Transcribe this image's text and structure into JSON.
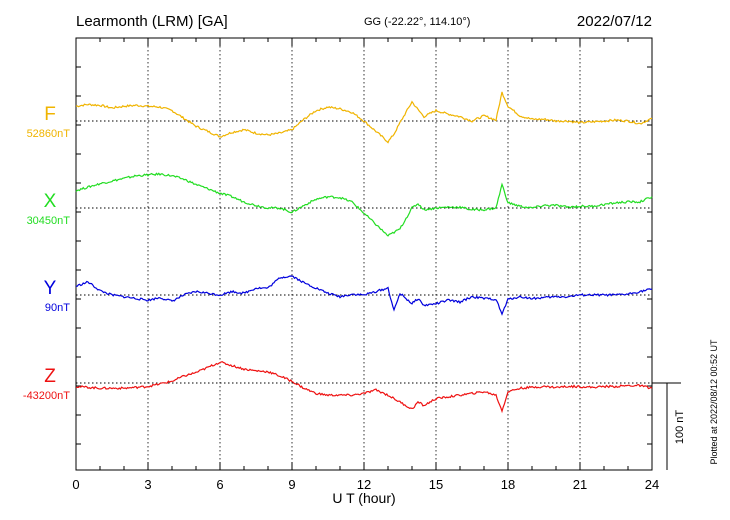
{
  "chart_data": {
    "type": "line",
    "title": "Learmonth (LRM)  [GA]",
    "subtitle": "GG (-22.22°, 114.10°)",
    "date": "2022/07/12",
    "xlabel": "U T (hour)",
    "xlim": [
      0,
      24
    ],
    "xticks": [
      "0",
      "3",
      "6",
      "9",
      "12",
      "15",
      "18",
      "21",
      "24"
    ],
    "scale_bar_label": "100 nT",
    "side_note": "Plotted at 2022/08/12 00:52 UT",
    "grid": true,
    "series": [
      {
        "name": "F",
        "baseline_label": "52860nT",
        "color": "#f0b400",
        "baseline_offset": 0,
        "x": [
          0,
          0.5,
          1,
          1.5,
          2,
          2.5,
          3,
          3.5,
          4,
          4.5,
          5,
          5.5,
          6,
          6.5,
          7,
          7.5,
          8,
          8.5,
          9,
          9.5,
          10,
          10.5,
          11,
          11.5,
          12,
          12.5,
          13,
          13.25,
          13.5,
          14,
          14.25,
          14.5,
          15,
          15.5,
          16,
          16.5,
          17,
          17.5,
          17.75,
          18,
          18.5,
          19,
          19.5,
          20,
          20.5,
          21,
          21.5,
          22,
          22.5,
          23,
          23.5,
          24
        ],
        "values": [
          17,
          19,
          18,
          15,
          17,
          18,
          17,
          16,
          12,
          3,
          -6,
          -12,
          -18,
          -13,
          -10,
          -14,
          -16,
          -14,
          -10,
          2,
          12,
          16,
          14,
          10,
          0,
          -12,
          -24,
          -15,
          -2,
          22,
          13,
          5,
          12,
          8,
          5,
          0,
          6,
          1,
          33,
          17,
          6,
          2,
          2,
          0,
          0,
          -2,
          -1,
          0,
          1,
          0,
          -3,
          3
        ]
      },
      {
        "name": "X",
        "baseline_label": "30450nT",
        "color": "#22dd22",
        "baseline_offset": 0,
        "x": [
          0,
          0.5,
          1,
          1.5,
          2,
          2.5,
          3,
          3.5,
          4,
          4.5,
          5,
          5.5,
          6,
          6.5,
          7,
          7.5,
          8,
          8.5,
          9,
          9.5,
          10,
          10.5,
          11,
          11.5,
          12,
          12.5,
          13,
          13.5,
          14,
          14.25,
          14.5,
          15,
          15.5,
          16,
          16.5,
          17,
          17.5,
          17.75,
          18,
          18.5,
          19,
          19.5,
          20,
          20.5,
          21,
          21.5,
          22,
          22.5,
          23,
          23.5,
          24
        ],
        "values": [
          20,
          24,
          28,
          31,
          34,
          37,
          38,
          39,
          37,
          33,
          27,
          22,
          17,
          13,
          7,
          3,
          0,
          0,
          -5,
          3,
          10,
          13,
          12,
          7,
          -6,
          -19,
          -32,
          -24,
          0,
          5,
          -2,
          0,
          1,
          1,
          -2,
          -2,
          0,
          27,
          6,
          2,
          0,
          3,
          3,
          1,
          2,
          2,
          4,
          6,
          7,
          7,
          13
        ]
      },
      {
        "name": "Y",
        "baseline_label": "90nT",
        "color": "#0000dd",
        "baseline_offset": 0,
        "x": [
          0,
          0.5,
          1,
          1.5,
          2,
          2.5,
          3,
          3.5,
          4,
          4.5,
          5,
          5.5,
          6,
          6.5,
          7,
          7.5,
          8,
          8.5,
          9,
          9.5,
          10,
          10.5,
          11,
          11.5,
          12,
          12.5,
          13,
          13.25,
          13.5,
          14,
          14.25,
          14.5,
          15,
          15.5,
          16,
          16.5,
          17,
          17.5,
          17.75,
          18,
          18.5,
          19,
          19.5,
          20,
          20.5,
          21,
          21.5,
          22,
          22.5,
          23,
          23.5,
          24
        ],
        "values": [
          10,
          15,
          5,
          0,
          -2,
          -4,
          -6,
          -3,
          -7,
          0,
          4,
          2,
          0,
          4,
          2,
          8,
          8,
          20,
          22,
          14,
          8,
          2,
          -2,
          1,
          0,
          4,
          8,
          -18,
          2,
          -10,
          -4,
          -12,
          -10,
          -6,
          -8,
          -2,
          -4,
          -5,
          -22,
          -5,
          -2,
          -4,
          -3,
          -2,
          -2,
          0,
          0,
          0,
          0,
          1,
          4,
          7
        ]
      },
      {
        "name": "Z",
        "baseline_label": "-43200nT",
        "color": "#ee1111",
        "baseline_offset": 0,
        "x": [
          0,
          0.5,
          1,
          1.5,
          2,
          2.5,
          3,
          3.5,
          4,
          4.5,
          5,
          5.5,
          6,
          6.5,
          7,
          7.5,
          8,
          8.5,
          9,
          9.5,
          10,
          10.5,
          11,
          11.5,
          12,
          12.5,
          13,
          13.5,
          14,
          14.25,
          14.5,
          15,
          15.5,
          16,
          16.5,
          17,
          17.5,
          17.75,
          18,
          18.5,
          19,
          19.5,
          20,
          20.5,
          21,
          21.5,
          22,
          22.5,
          23,
          23.5,
          24
        ],
        "values": [
          -4,
          -5,
          -6,
          -6,
          -6,
          -5,
          -4,
          -1,
          2,
          8,
          12,
          18,
          24,
          20,
          16,
          14,
          13,
          8,
          2,
          -6,
          -12,
          -14,
          -14,
          -14,
          -12,
          -8,
          -14,
          -22,
          -30,
          -22,
          -26,
          -18,
          -16,
          -14,
          -12,
          -10,
          -14,
          -32,
          -10,
          -6,
          -5,
          -4,
          -5,
          -4,
          -4,
          -5,
          -4,
          -4,
          -3,
          -3,
          -6
        ]
      }
    ]
  }
}
